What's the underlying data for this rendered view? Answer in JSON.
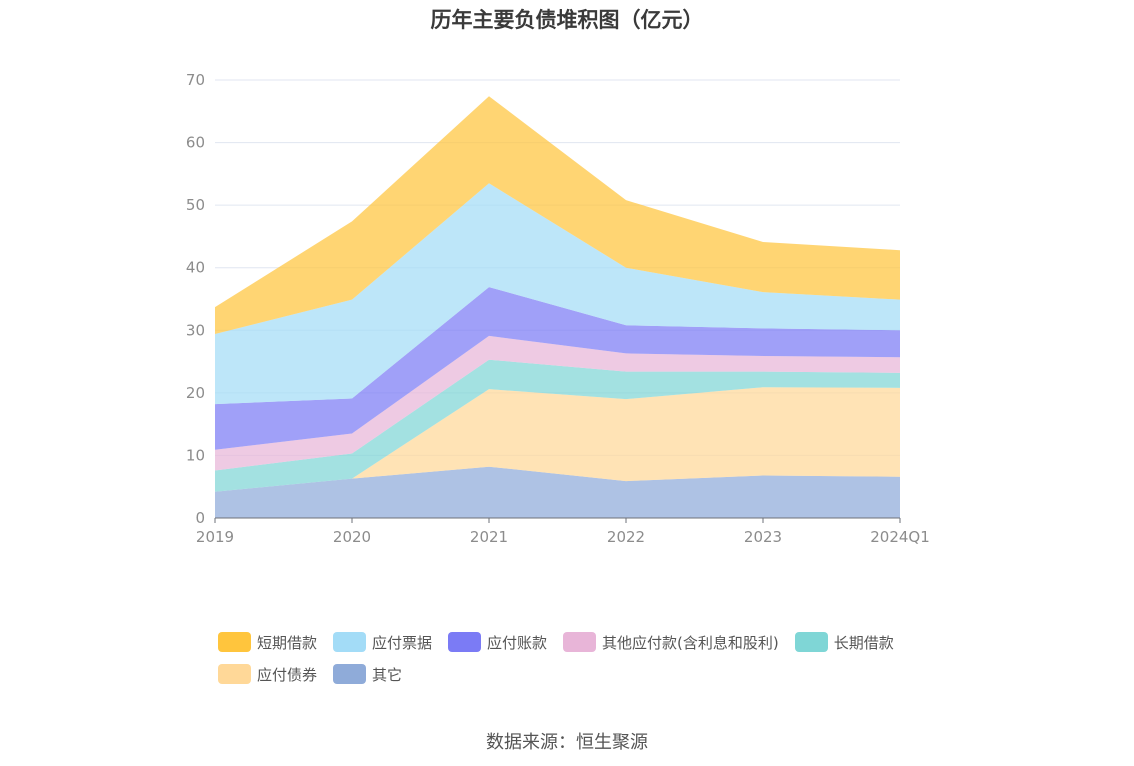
{
  "chart_data": {
    "type": "area",
    "title": "历年主要负债堆积图（亿元）",
    "stacked": true,
    "x": [
      "2019",
      "2020",
      "2021",
      "2022",
      "2023",
      "2024Q1"
    ],
    "ylim": [
      0,
      70
    ],
    "yticks": [
      0,
      10,
      20,
      30,
      40,
      50,
      60,
      70
    ],
    "grid": true,
    "legend_position": "bottom",
    "series": [
      {
        "name": "其它",
        "color": "#8fabd9",
        "values": [
          4.2,
          6.3,
          8.2,
          5.9,
          6.8,
          6.6
        ]
      },
      {
        "name": "应付债券",
        "color": "#ffd898",
        "values": [
          0.0,
          0.0,
          12.4,
          13.1,
          14.1,
          14.2
        ]
      },
      {
        "name": "长期借款",
        "color": "#7fd6d6",
        "values": [
          3.4,
          4.0,
          4.7,
          4.4,
          2.5,
          2.4
        ]
      },
      {
        "name": "其他应付款(含利息和股利)",
        "color": "#e8b5d8",
        "values": [
          3.3,
          3.2,
          3.8,
          2.9,
          2.5,
          2.5
        ]
      },
      {
        "name": "应付账款",
        "color": "#7b7bf5",
        "values": [
          7.3,
          5.6,
          7.8,
          4.5,
          4.4,
          4.3
        ]
      },
      {
        "name": "应付票据",
        "color": "#a3dcf7",
        "values": [
          11.2,
          15.8,
          16.6,
          9.2,
          5.8,
          4.9
        ]
      },
      {
        "name": "短期借款",
        "color": "#ffc53d",
        "values": [
          4.3,
          12.5,
          13.9,
          10.8,
          8.0,
          7.9
        ]
      }
    ],
    "legend_order": [
      "短期借款",
      "应付票据",
      "应付账款",
      "其他应付款(含利息和股利)",
      "长期借款",
      "应付债券",
      "其它"
    ]
  },
  "source_note": "数据来源：恒生聚源"
}
